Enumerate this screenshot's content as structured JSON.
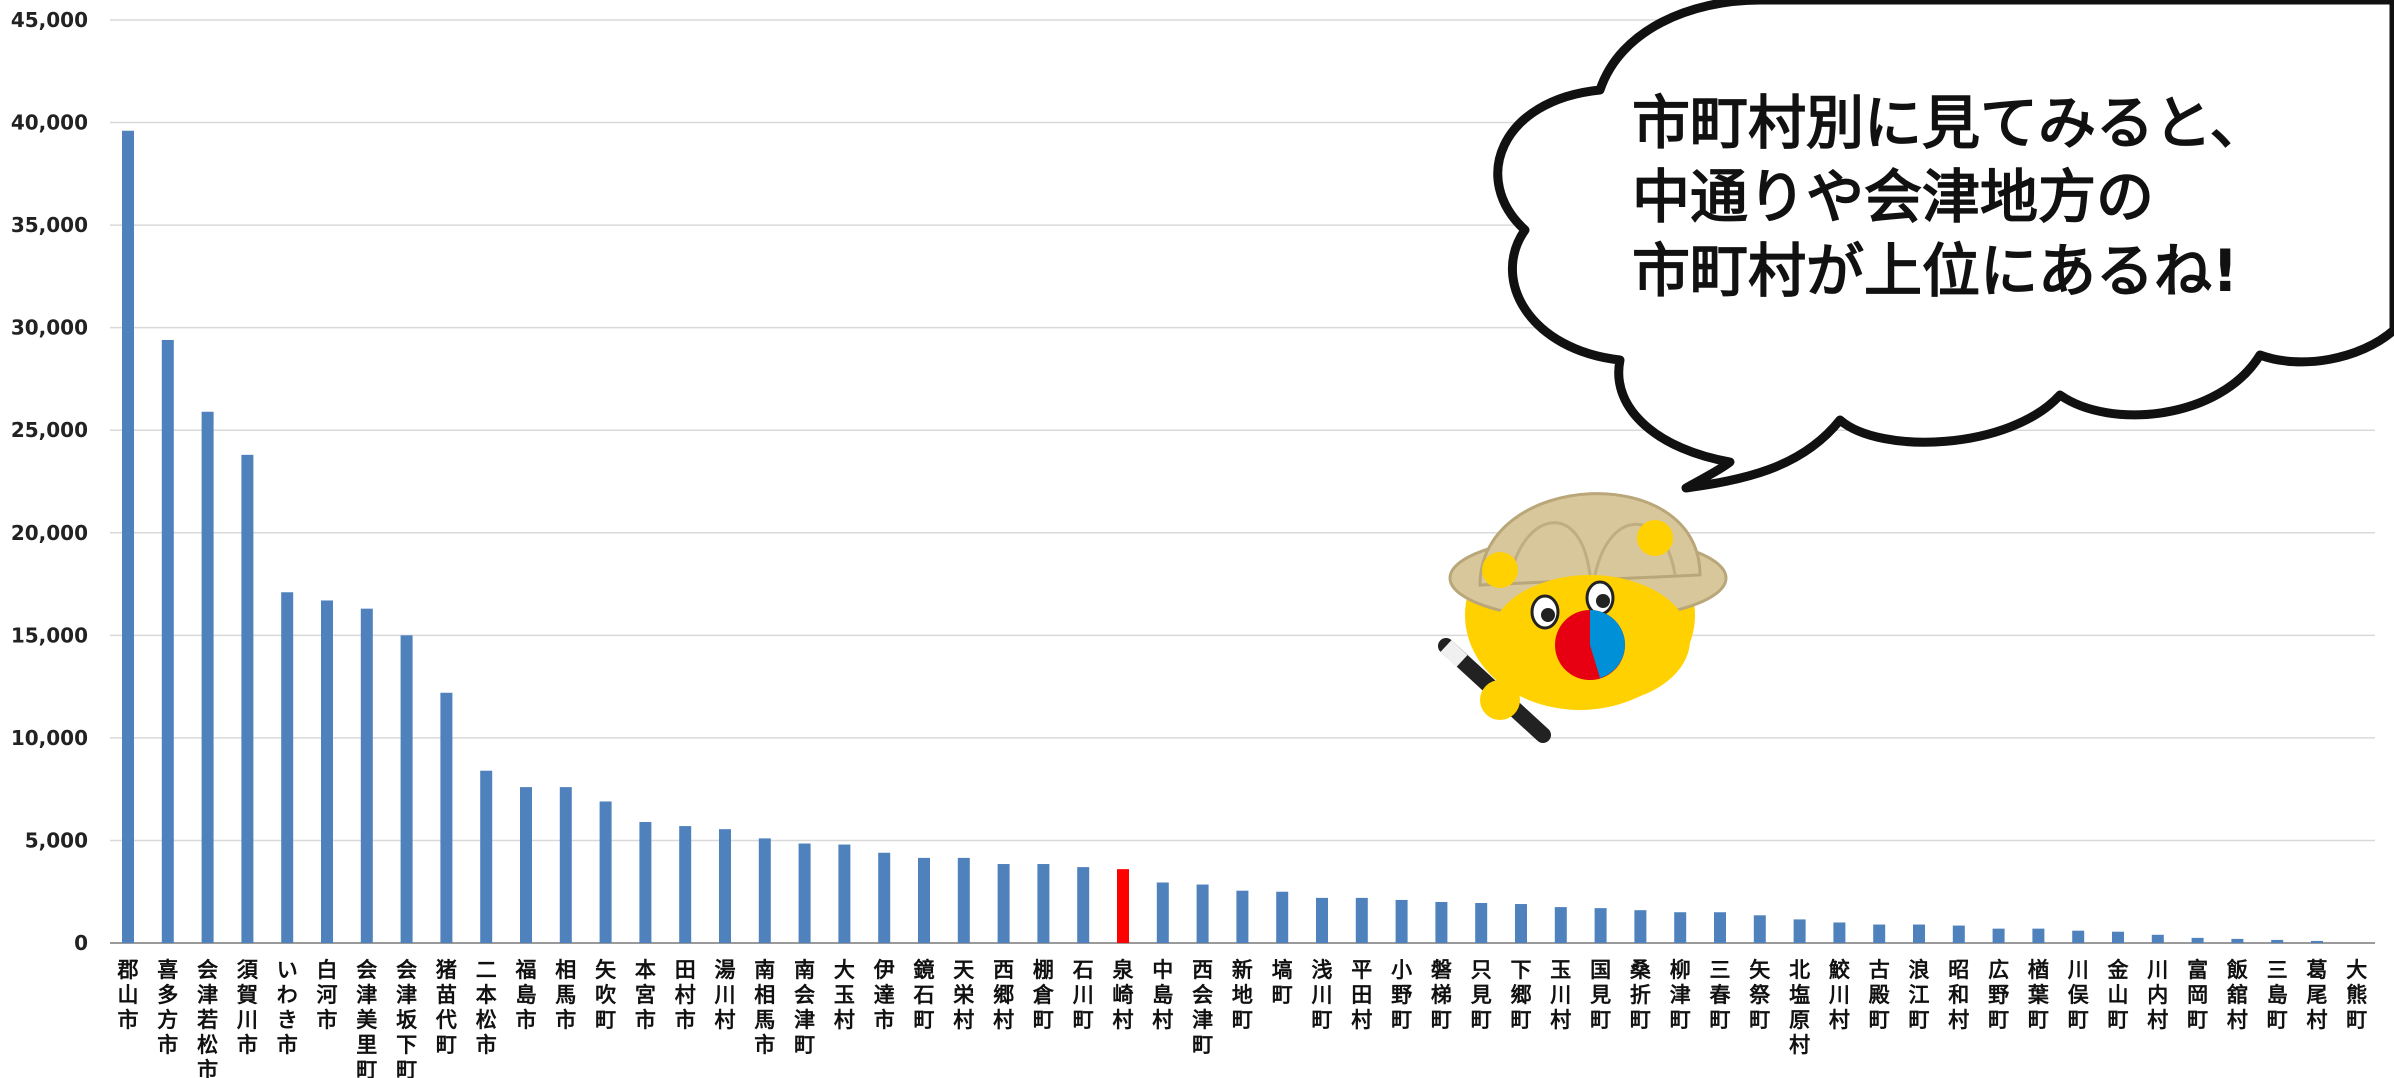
{
  "chart_data": {
    "type": "bar",
    "title": "",
    "xlabel": "",
    "ylabel": "",
    "ylim": [
      0,
      45000
    ],
    "yticks": [
      0,
      5000,
      10000,
      15000,
      20000,
      25000,
      30000,
      35000,
      40000,
      45000
    ],
    "ytick_labels": [
      "0",
      "5,000",
      "10,000",
      "15,000",
      "20,000",
      "25,000",
      "30,000",
      "35,000",
      "40,000",
      "45,000"
    ],
    "grid": true,
    "bar_color": "#4f81bd",
    "highlight_color": "#ff0000",
    "highlight_category": "泉崎村",
    "categories": [
      "郡山市",
      "喜多方市",
      "会津若松市",
      "須賀川市",
      "いわき市",
      "白河市",
      "会津美里町",
      "会津坂下町",
      "猪苗代町",
      "二本松市",
      "福島市",
      "相馬市",
      "矢吹町",
      "本宮市",
      "田村市",
      "湯川村",
      "南相馬市",
      "南会津町",
      "大玉村",
      "伊達市",
      "鏡石町",
      "天栄村",
      "西郷村",
      "棚倉町",
      "石川町",
      "泉崎村",
      "中島村",
      "西会津町",
      "新地町",
      "塙町",
      "浅川町",
      "平田村",
      "小野町",
      "磐梯町",
      "只見町",
      "下郷町",
      "玉川村",
      "国見町",
      "桑折町",
      "柳津町",
      "三春町",
      "矢祭町",
      "北塩原村",
      "鮫川村",
      "古殿町",
      "浪江町",
      "昭和村",
      "広野町",
      "楢葉町",
      "川俣町",
      "金山町",
      "川内村",
      "富岡町",
      "飯舘村",
      "三島町",
      "葛尾村",
      "大熊町"
    ],
    "values": [
      39600,
      29400,
      25900,
      23800,
      17100,
      16700,
      16300,
      15000,
      12200,
      8400,
      7600,
      7600,
      6900,
      5900,
      5700,
      5550,
      5100,
      4850,
      4800,
      4400,
      4150,
      4150,
      3850,
      3850,
      3700,
      3600,
      2950,
      2850,
      2550,
      2500,
      2200,
      2200,
      2100,
      2000,
      1950,
      1900,
      1750,
      1700,
      1600,
      1500,
      1500,
      1350,
      1150,
      1000,
      900,
      900,
      850,
      700,
      700,
      600,
      550,
      400,
      250,
      200,
      150,
      100,
      0
    ]
  },
  "speech_bubble": {
    "lines": [
      "市町村別に見てみると、",
      "中通りや会津地方の",
      "市町村が上位にあるね!"
    ]
  },
  "mascot": {
    "icon": "mascot-explorer-hat-icon"
  }
}
